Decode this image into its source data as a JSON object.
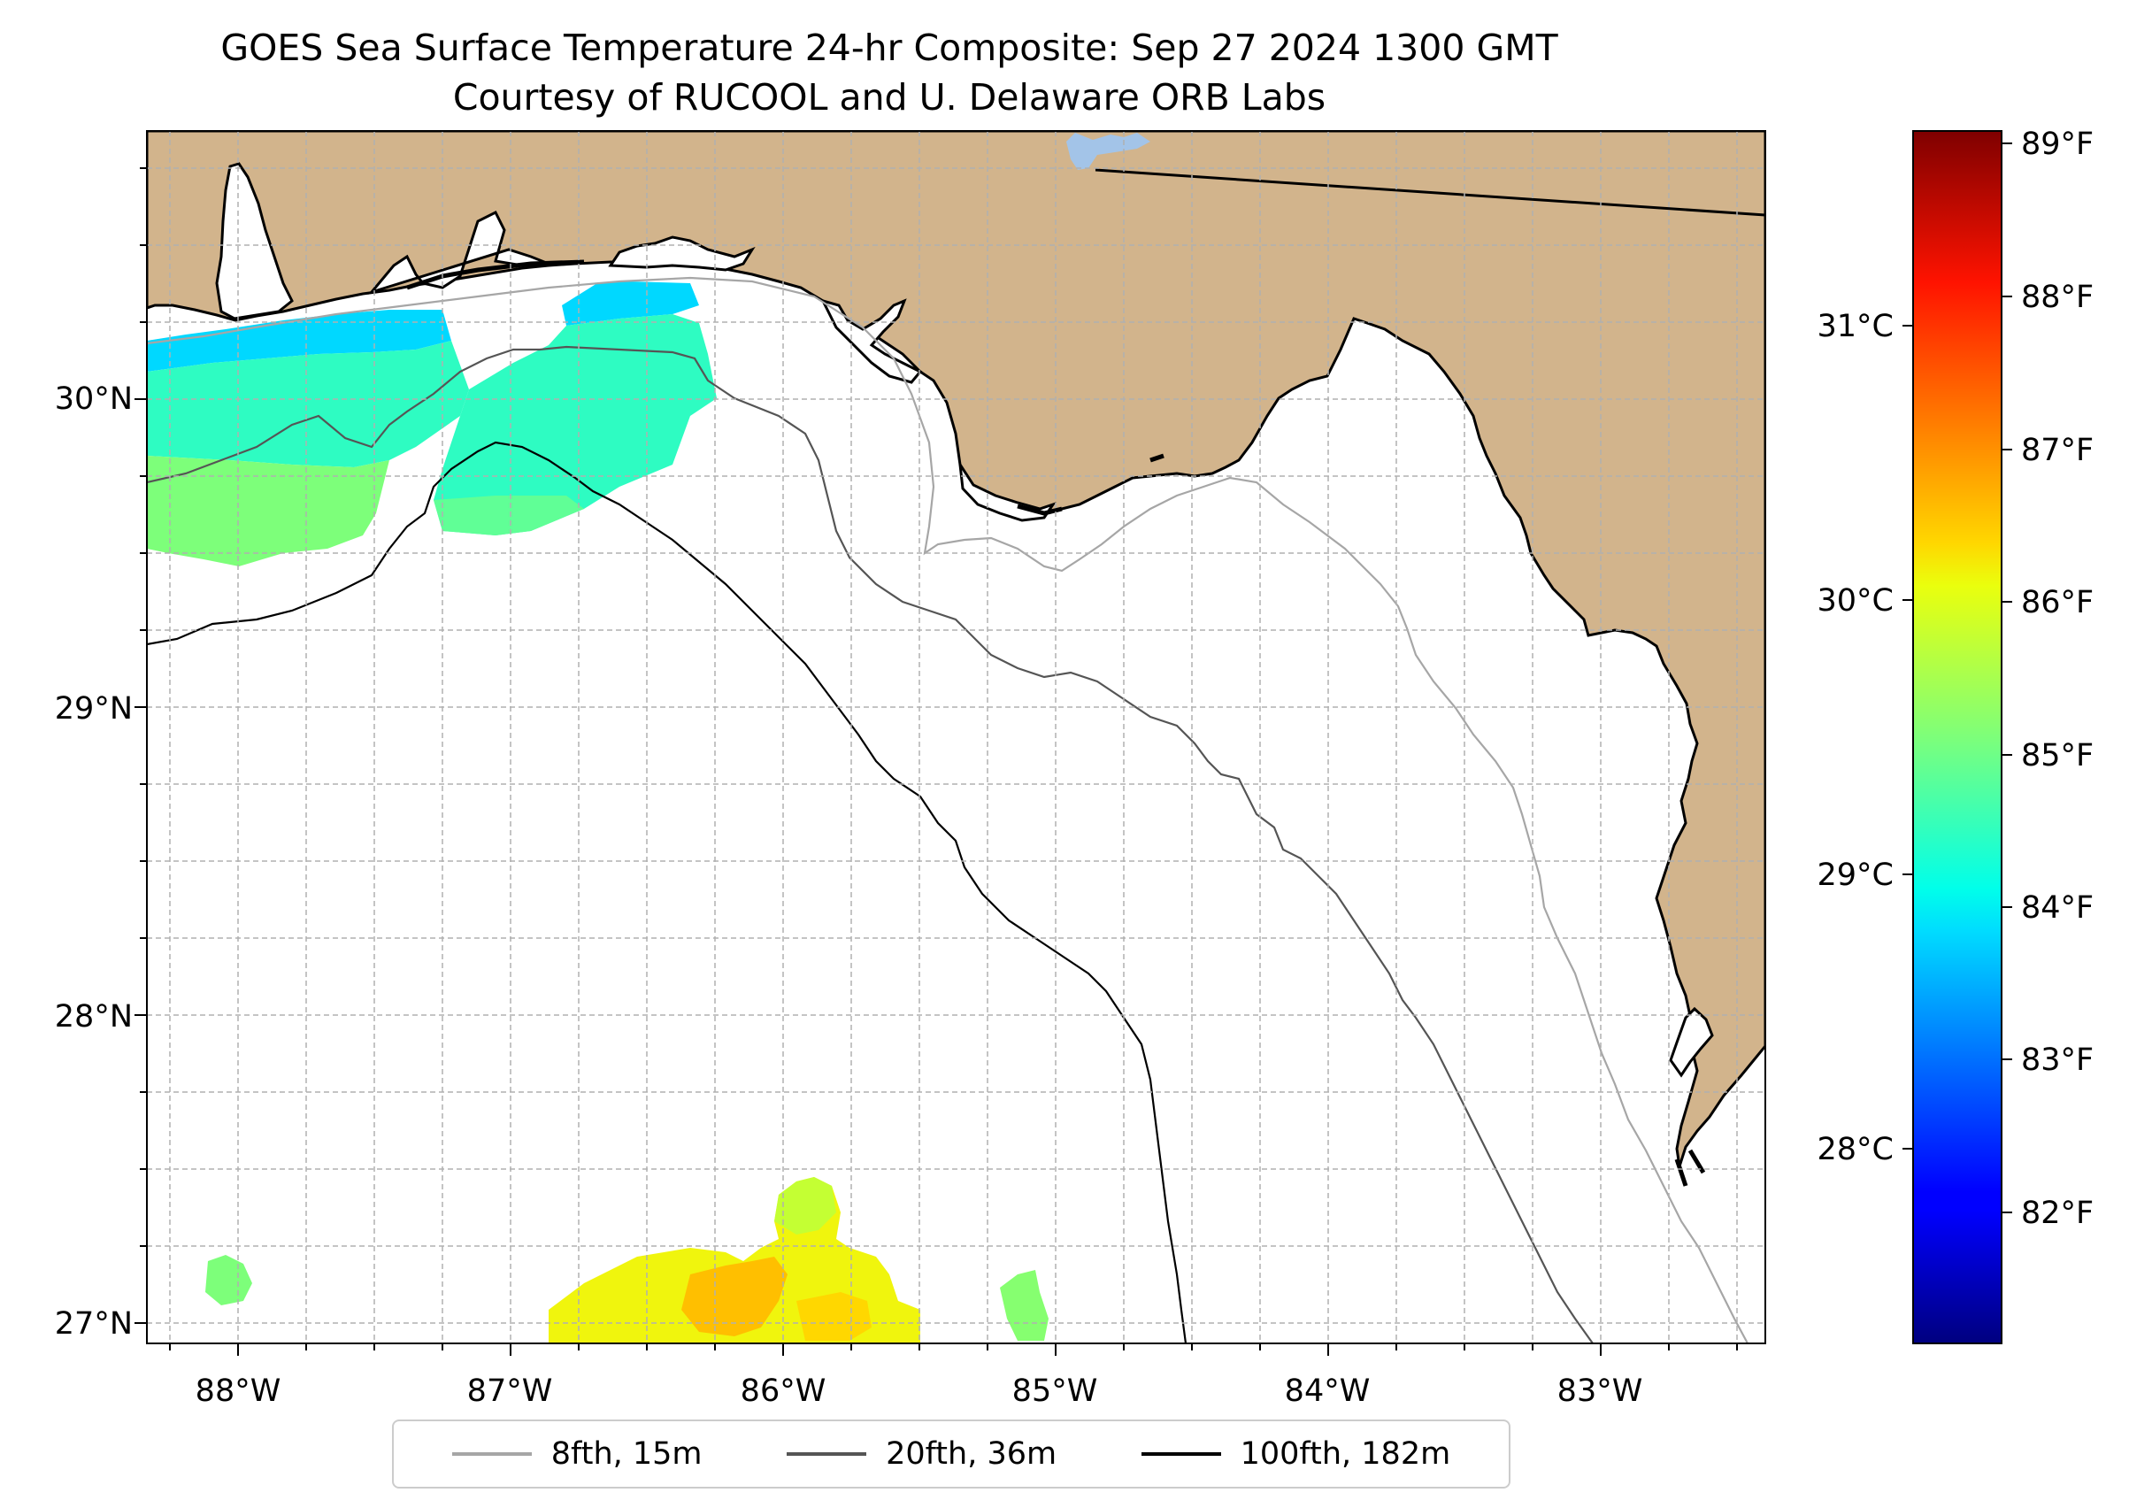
{
  "title": {
    "line1": "GOES Sea Surface Temperature 24-hr Composite: Sep 27 2024 1300 GMT",
    "line2": "Courtesy of RUCOOL and U. Delaware ORB Labs"
  },
  "map": {
    "lon_ticks": [
      "88°W",
      "87°W",
      "86°W",
      "85°W",
      "84°W",
      "83°W"
    ],
    "lat_ticks": [
      "27°N",
      "28°N",
      "29°N",
      "30°N"
    ],
    "land_color": "#D2B48C",
    "water_color": "#ffffff",
    "lake_color": "#a3c4e8"
  },
  "colorbar": {
    "celsius_ticks": [
      "28°C",
      "29°C",
      "30°C",
      "31°C"
    ],
    "fahrenheit_ticks": [
      "82°F",
      "83°F",
      "84°F",
      "85°F",
      "86°F",
      "87°F",
      "88°F",
      "89°F"
    ],
    "colormap": "jet"
  },
  "legend": {
    "items": [
      {
        "label": "8fth, 15m",
        "color": "#a6a6a6"
      },
      {
        "label": "20fth, 36m",
        "color": "#555555"
      },
      {
        "label": "100fth, 182m",
        "color": "#000000"
      }
    ]
  }
}
